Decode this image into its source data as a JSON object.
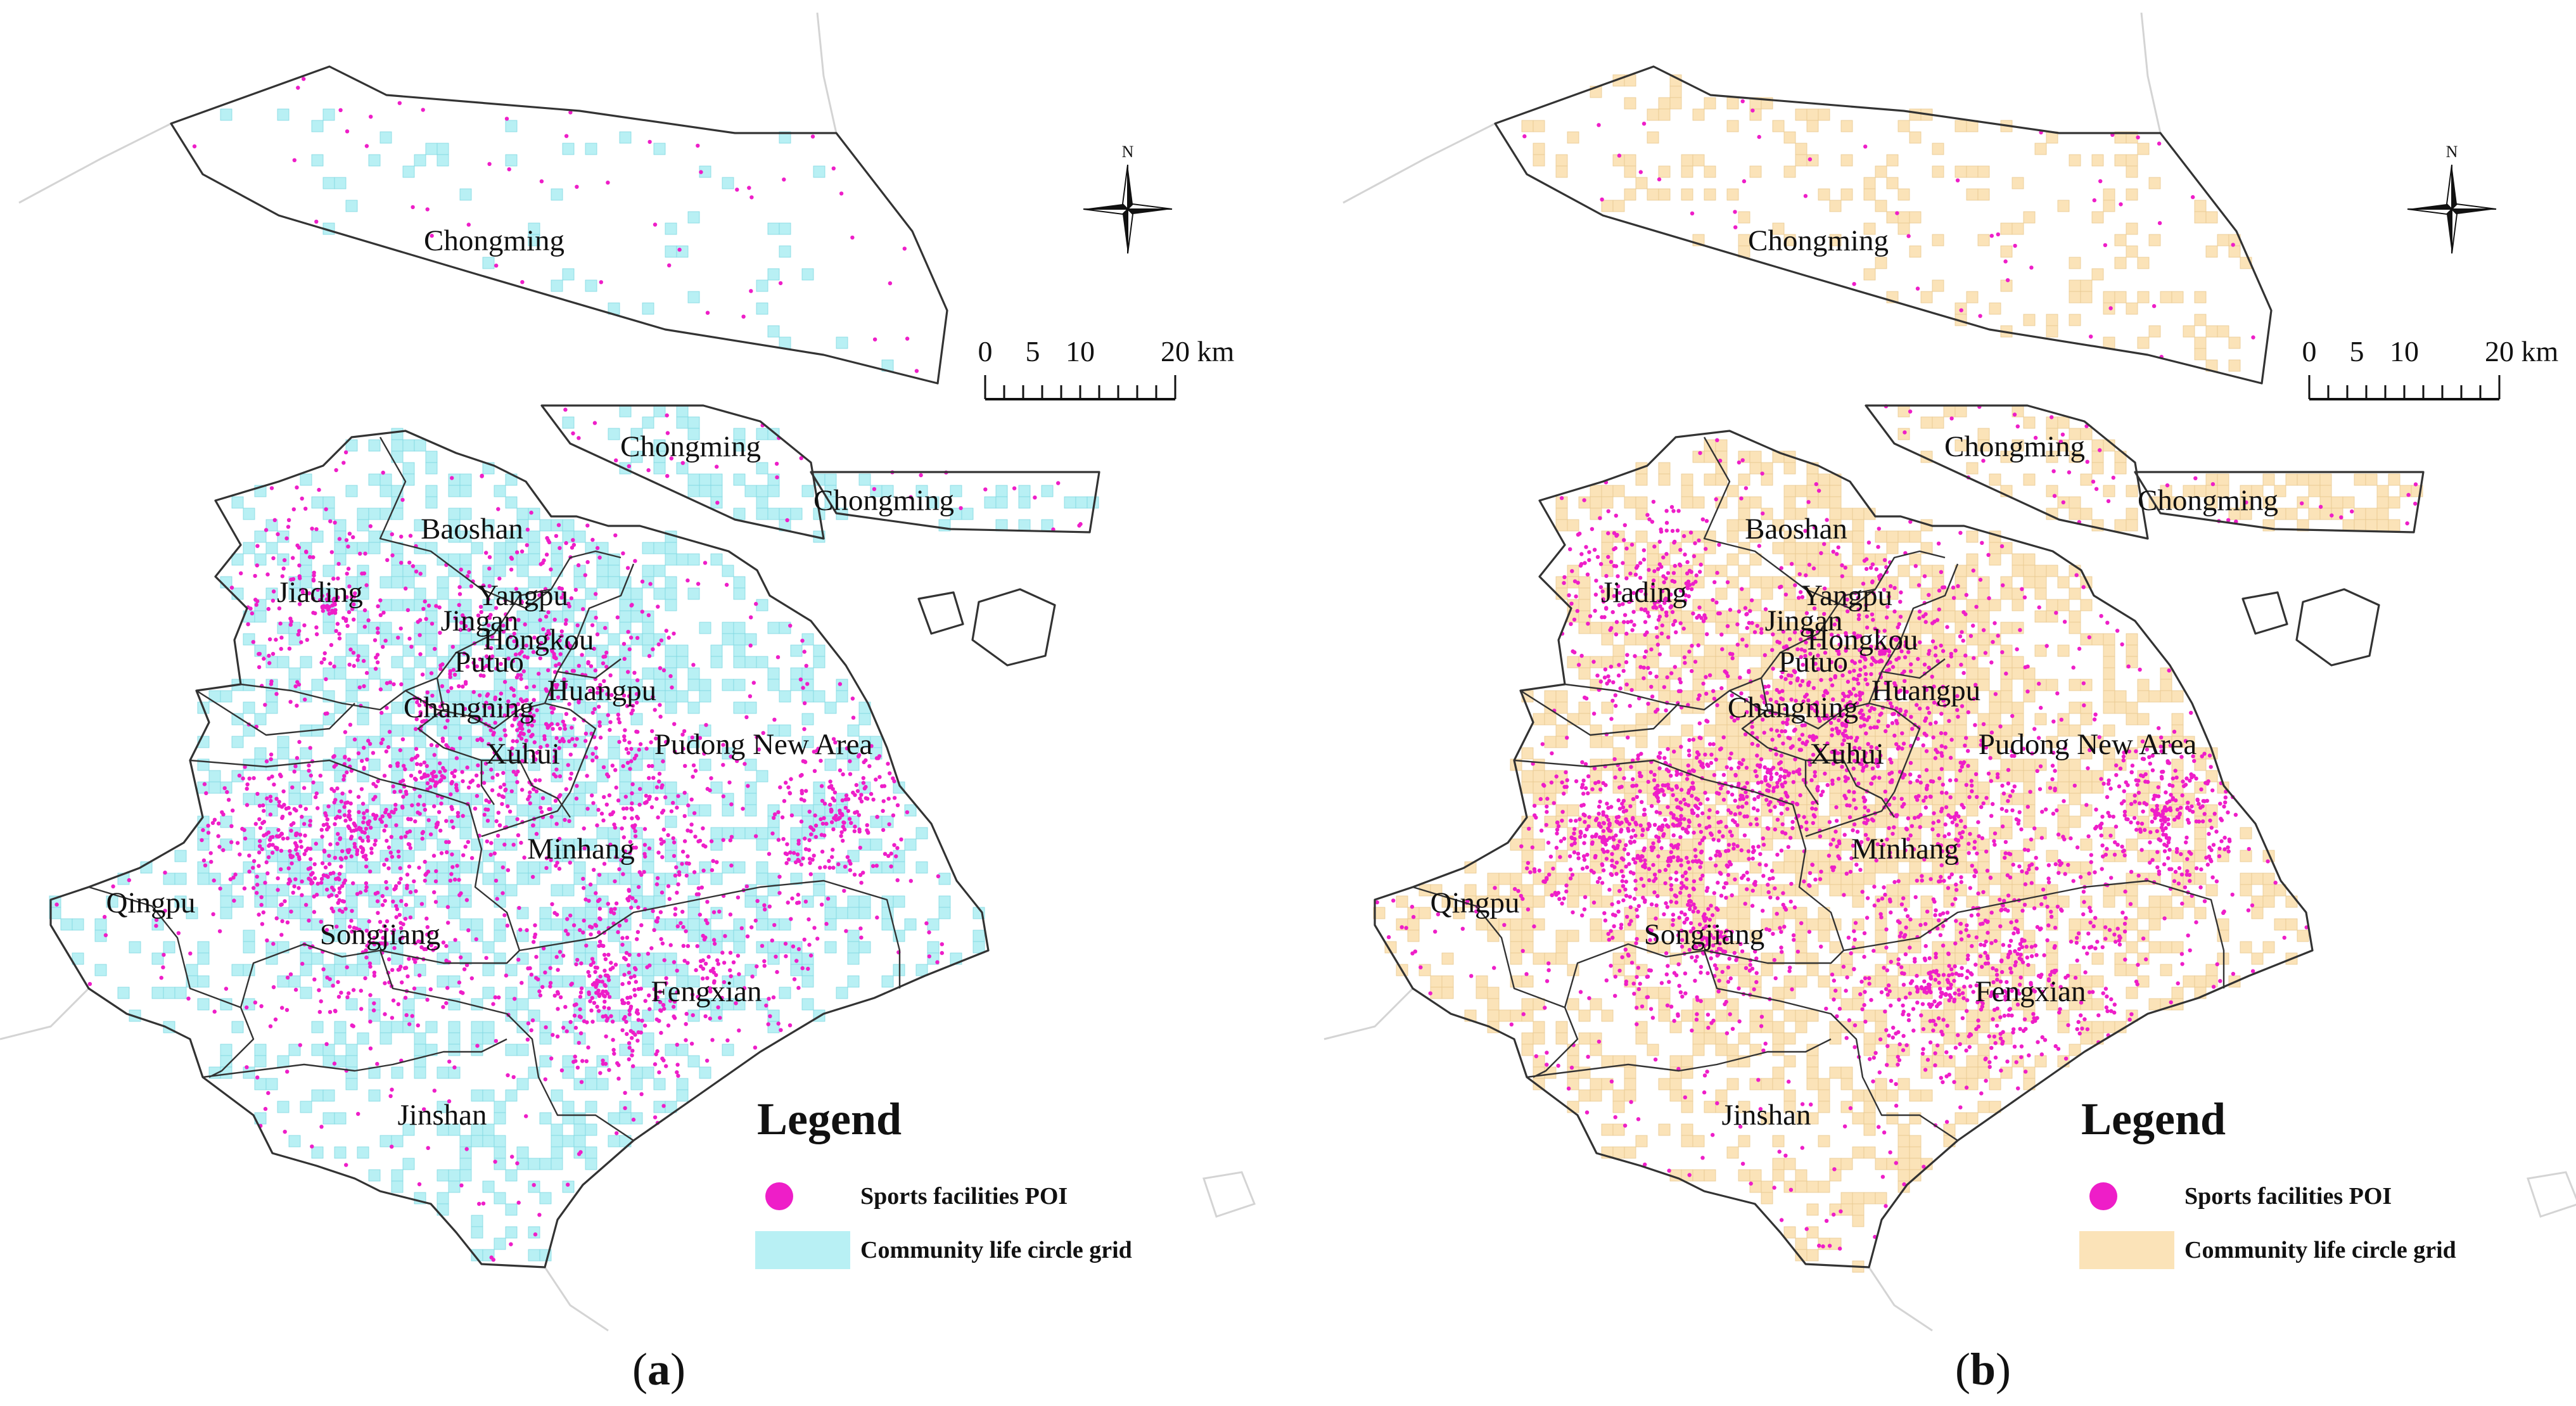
{
  "panels": [
    {
      "id": "a",
      "caption": {
        "open": "(",
        "letter": "a",
        "close": ")"
      },
      "grid_color": "#b8f0f4",
      "grid_stroke": "#7fd8e2",
      "grid_density": 0.45,
      "poi_color": "#ee1ec8",
      "districts": [
        "Chongming",
        "Chongming",
        "Chongming",
        "Baoshan",
        "Jiading",
        "Yangpu",
        "Jingan",
        "Hongkou",
        "Putuo",
        "Changning",
        "Huangpu",
        "Xuhui",
        "Pudong New Area",
        "Minhang",
        "Qingpu",
        "Songjiang",
        "Fengxian",
        "Jinshan"
      ],
      "scale": {
        "ticks": [
          "0",
          "5",
          "10",
          "20 km"
        ]
      },
      "north": "N",
      "legend": {
        "title": "Legend",
        "items": [
          {
            "label": "Sports facilities POI",
            "icon": "poi-dot-icon",
            "color": "#ee1ec8"
          },
          {
            "label": "Community life circle grid",
            "icon": "grid-square-icon",
            "color": "#b8f0f4"
          }
        ]
      }
    },
    {
      "id": "b",
      "caption": {
        "open": "(",
        "letter": "b",
        "close": ")"
      },
      "grid_color": "#fbe3b8",
      "grid_stroke": "#e8c990",
      "grid_density": 0.62,
      "poi_color": "#ee1ec8",
      "districts": [
        "Chongming",
        "Chongming",
        "Chongming",
        "Baoshan",
        "Jiading",
        "Yangpu",
        "Jingan",
        "Hongkou",
        "Putuo",
        "Changning",
        "Huangpu",
        "Xuhui",
        "Pudong New Area",
        "Minhang",
        "Qingpu",
        "Songjiang",
        "Fengxian",
        "Jinshan"
      ],
      "scale": {
        "ticks": [
          "0",
          "5",
          "10",
          "20 km"
        ]
      },
      "north": "N",
      "legend": {
        "title": "Legend",
        "items": [
          {
            "label": "Sports facilities POI",
            "icon": "poi-dot-icon",
            "color": "#ee1ec8"
          },
          {
            "label": "Community life circle grid",
            "icon": "grid-square-icon",
            "color": "#fbe3b8"
          }
        ]
      }
    }
  ]
}
